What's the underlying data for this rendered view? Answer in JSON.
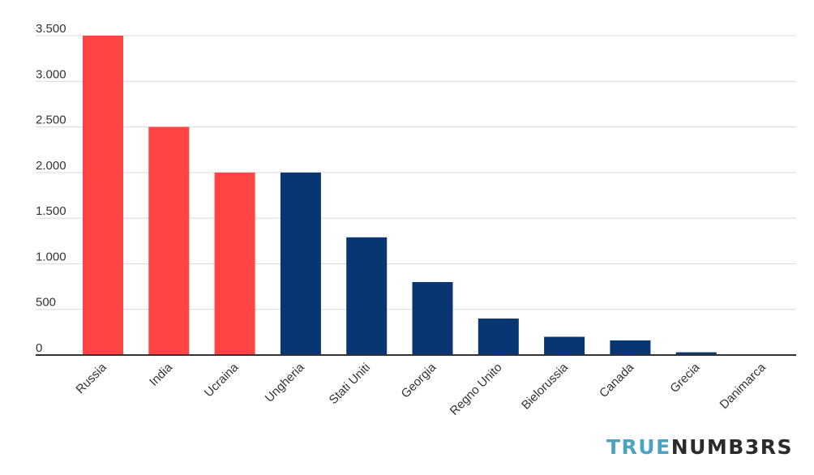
{
  "chart_data": {
    "type": "bar",
    "categories": [
      "Russia",
      "India",
      "Ucraina",
      "Ungheria",
      "Stati Uniti",
      "Georgia",
      "Regno Unito",
      "Bielorussia",
      "Canada",
      "Grecia",
      "Danimarca"
    ],
    "values": [
      3500,
      2500,
      2000,
      2000,
      1290,
      800,
      400,
      200,
      160,
      30,
      0
    ],
    "bar_colors": [
      "#ff4444",
      "#ff4444",
      "#ff4444",
      "#073673",
      "#073673",
      "#073673",
      "#073673",
      "#073673",
      "#073673",
      "#073673",
      "#073673"
    ],
    "ylim": [
      0,
      3500
    ],
    "yticks": [
      0,
      500,
      1000,
      1500,
      2000,
      2500,
      3000,
      3500
    ],
    "ytick_labels": [
      "0",
      "500",
      "1.000",
      "1.500",
      "2.000",
      "2.500",
      "3.000",
      "3.500"
    ],
    "grid": true,
    "title": "",
    "xlabel": "",
    "ylabel": ""
  },
  "logo": {
    "part1": "TRUE",
    "part2": "NUMB3RS"
  },
  "colors": {
    "accent_red": "#ff4444",
    "accent_navy": "#073673",
    "logo_teal": "#4aa3c2"
  }
}
